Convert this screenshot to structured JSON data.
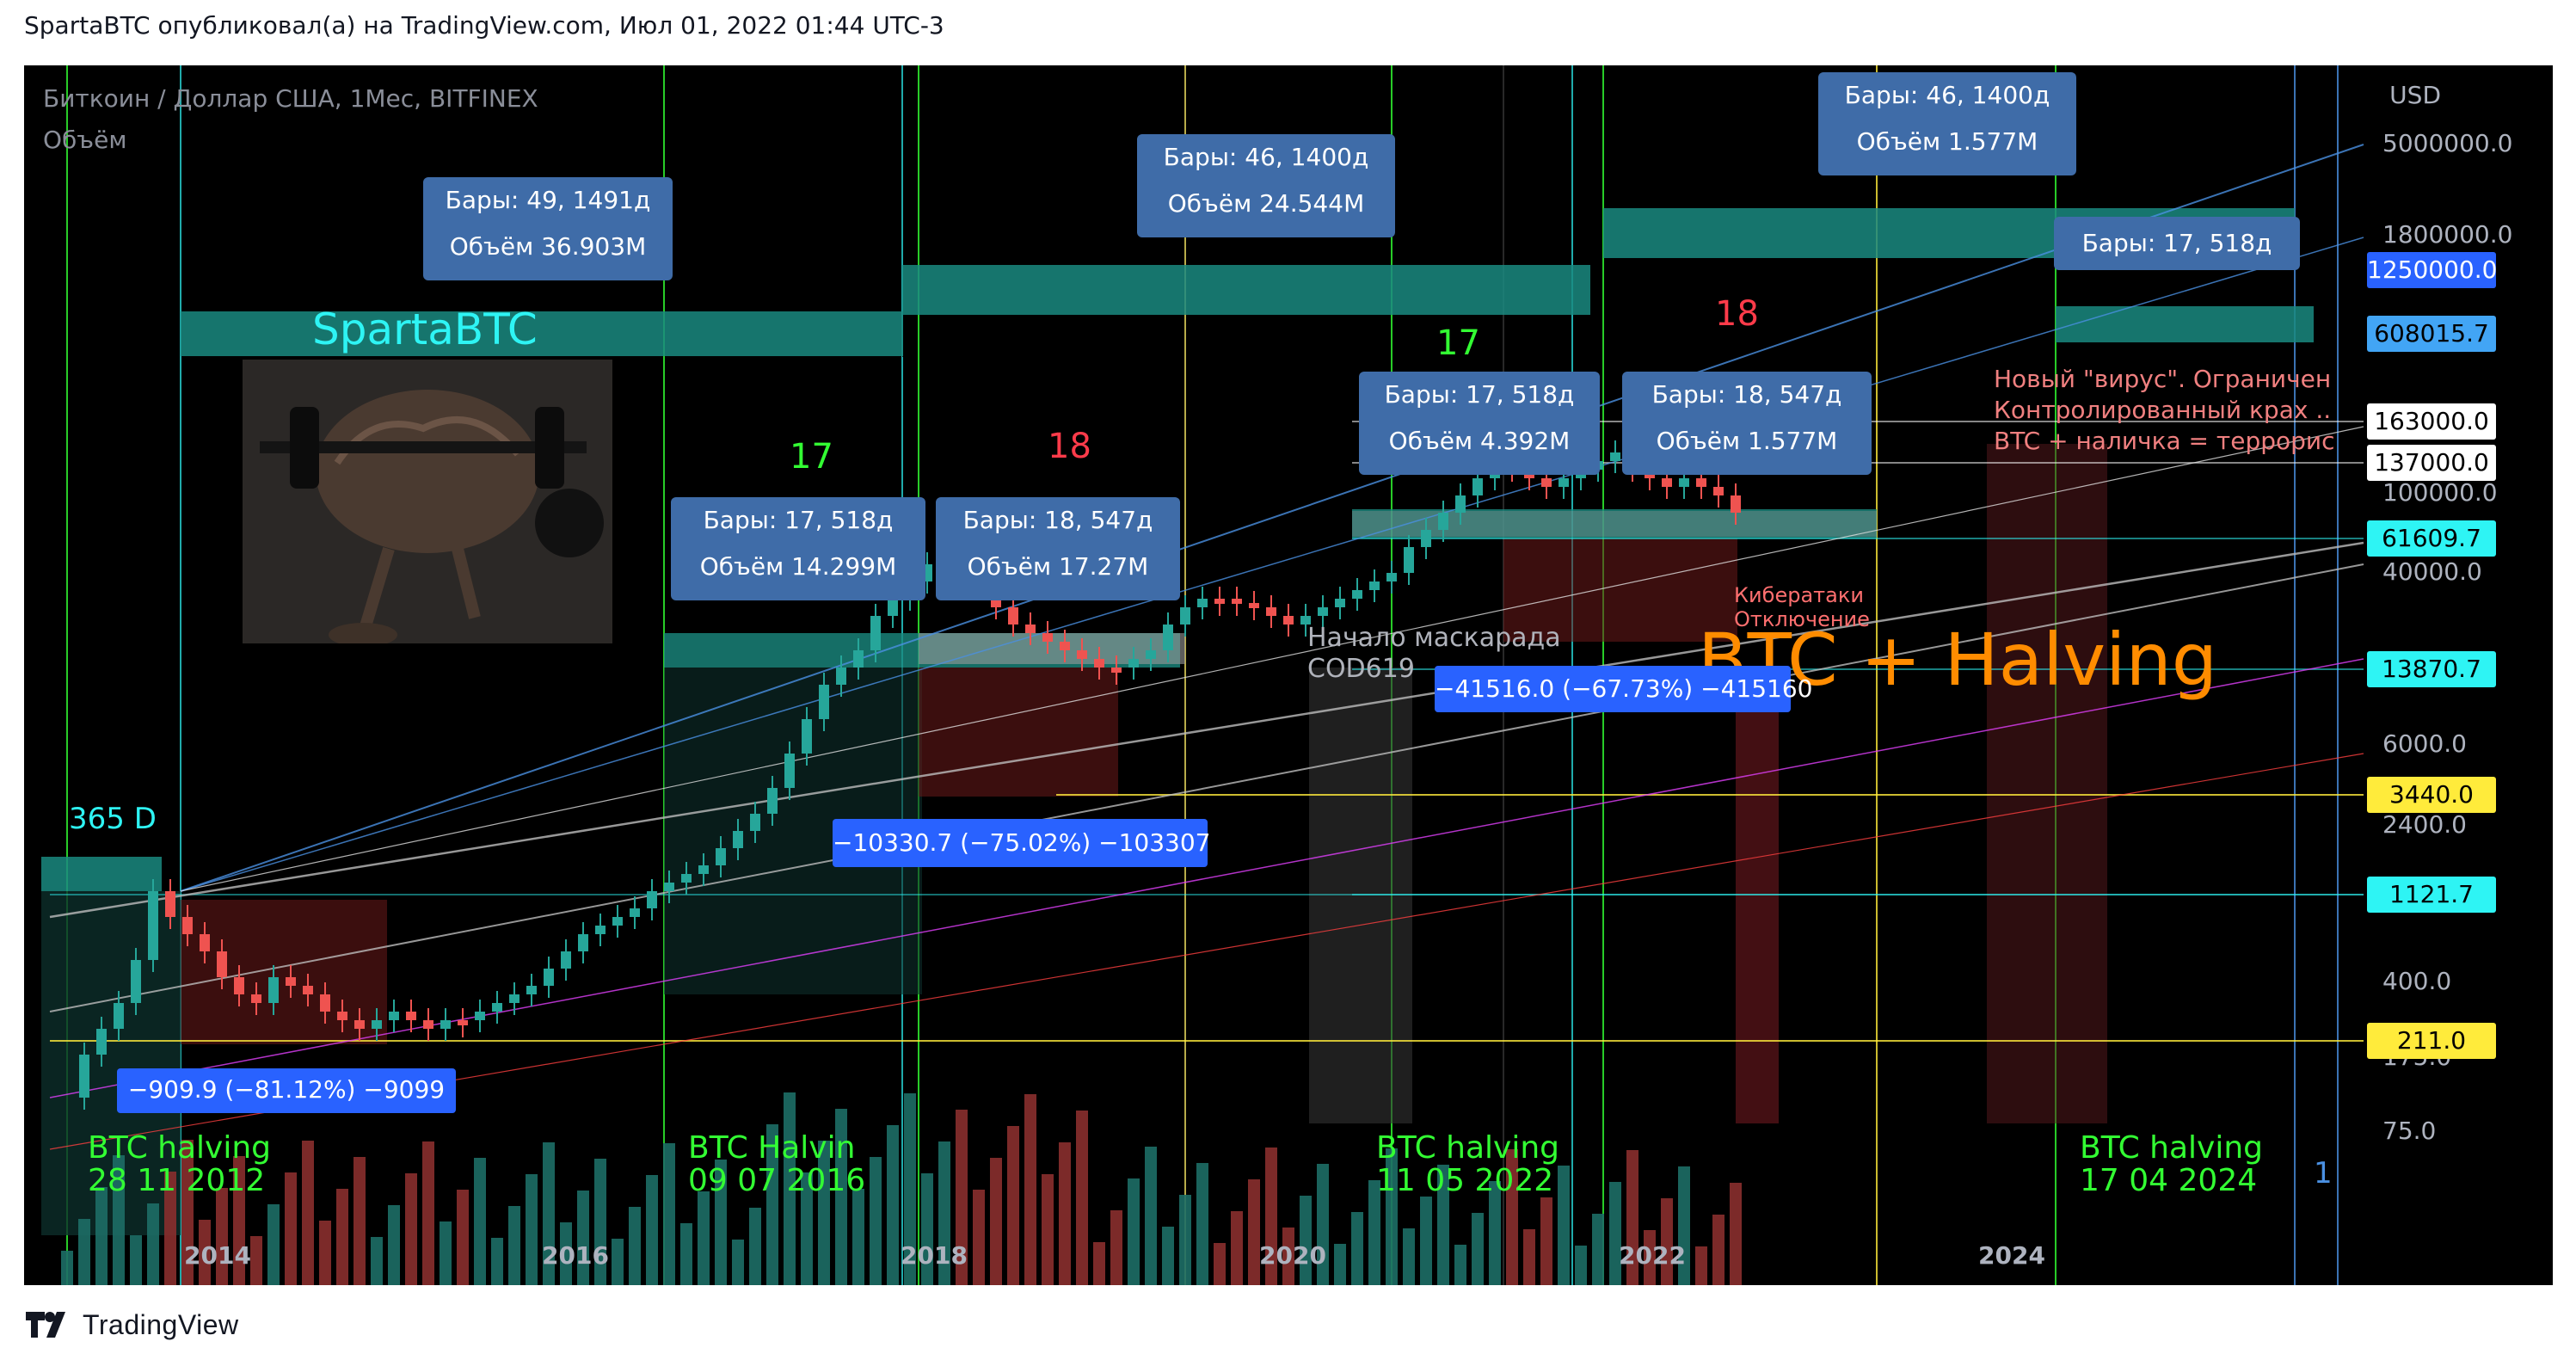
{
  "header": {
    "text": "SpartaBTC опубликовал(а) на TradingView.com, Июл 01, 2022 01:44 UTC-3"
  },
  "footer": {
    "brand": "TradingView"
  },
  "pane": {
    "title": "Биткоин / Доллар США, 1Мес, BITFINEX",
    "volume_label": "Объём",
    "currency": "USD"
  },
  "chart_data": {
    "type": "candlestick",
    "title": "Биткоин / Доллар США, 1Мес, BITFINEX",
    "symbol": "BTCUSD",
    "exchange": "BITFINEX",
    "interval": "1M",
    "scale": "log",
    "x_ticks": [
      "2014",
      "2016",
      "2018",
      "2020",
      "2022",
      "2024"
    ],
    "y_ticks": [
      "5000000.0",
      "1800000.0",
      "100000.0",
      "40000.0",
      "13870.7",
      "6000.0",
      "2400.0",
      "400.0",
      "175.0",
      "75.0"
    ],
    "price_tags": [
      {
        "value": "1250000.0",
        "bg": "#2962ff",
        "fg": "#ffffff"
      },
      {
        "value": "608015.7",
        "bg": "#42a5f5",
        "fg": "#000000"
      },
      {
        "value": "163000.0",
        "bg": "#ffffff",
        "fg": "#000000"
      },
      {
        "value": "137000.0",
        "bg": "#ffffff",
        "fg": "#000000"
      },
      {
        "value": "61609.7",
        "bg": "#2ef4f4",
        "fg": "#000000"
      },
      {
        "value": "13870.7",
        "bg": "#2ef4f4",
        "fg": "#000000"
      },
      {
        "value": "3440.0",
        "bg": "#ffeb3b",
        "fg": "#000000"
      },
      {
        "value": "1121.7",
        "bg": "#2ef4f4",
        "fg": "#000000"
      },
      {
        "value": "211.0",
        "bg": "#ffeb3b",
        "fg": "#000000"
      }
    ],
    "measure_boxes": [
      {
        "line1": "Бары: 49, 1491д",
        "line2": "Объём 36.903M"
      },
      {
        "line1": "Бары: 17, 518д",
        "line2": "Объём 14.299M"
      },
      {
        "line1": "Бары: 18, 547д",
        "line2": "Объём 17.27M"
      },
      {
        "line1": "Бары: 46, 1400д",
        "line2": "Объём 24.544M"
      },
      {
        "line1": "Бары: 17, 518д",
        "line2": "Объём 4.392M"
      },
      {
        "line1": "Бары: 18, 547д",
        "line2": "Объём 1.577M"
      },
      {
        "line1": "Бары: 46, 1400д",
        "line2": "Объём 1.577M"
      },
      {
        "line1": "Бары: 17, 518д",
        "line2": ""
      }
    ],
    "drawdowns": [
      "−909.9 (−81.12%) −9099",
      "−10330.7 (−75.02%) −103307",
      "−41516.0 (−67.73%) −415160"
    ],
    "halvings": [
      {
        "label": "BTC halving",
        "date": "28 11 2012"
      },
      {
        "label": "BTC Halvin",
        "date": "09 07 2016"
      },
      {
        "label": "BTC halving",
        "date": "11 05 2022"
      },
      {
        "label": "BTC halving",
        "date": "17 04 2024"
      }
    ],
    "annotations": {
      "author": "SpartaBTC",
      "days365": "365 D",
      "count17a": "17",
      "count18a": "18",
      "count17b": "17",
      "count18b": "18",
      "masquerade1": "Начало маскарада",
      "masquerade2": "COD619",
      "cyber1": "Кибератаки",
      "cyber2": "Отключение",
      "halving_big": "BTC + Halving",
      "note1": "Новый \"вирус\". Ограничен",
      "note2": "Контролированный крах ..",
      "note3": "BTC + наличка = террорис",
      "right_num": "1"
    },
    "colors": {
      "up": "#26a69a",
      "down": "#ef5350",
      "up_bright": "#00c853"
    }
  }
}
